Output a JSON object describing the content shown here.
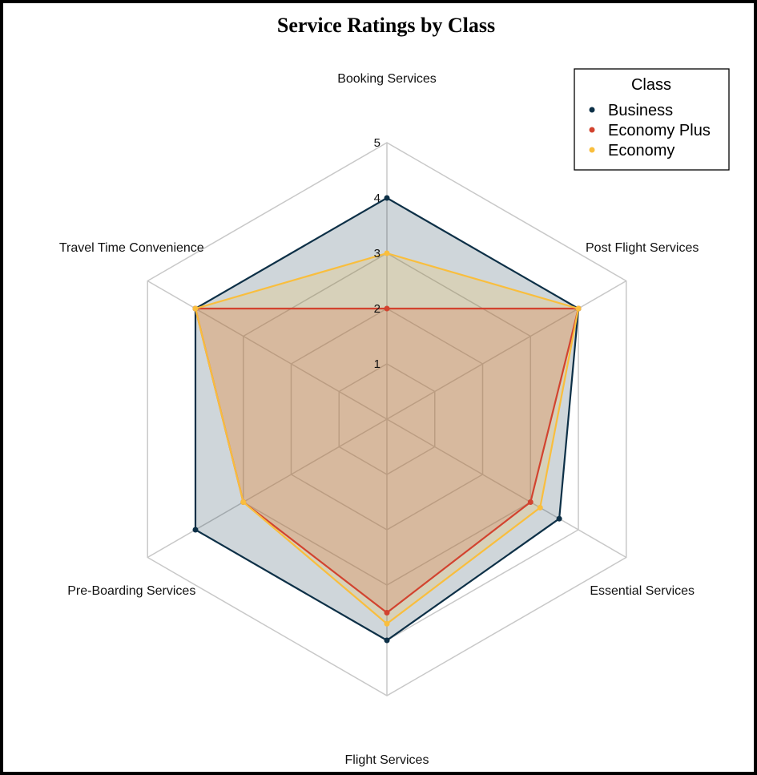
{
  "chart_data": {
    "type": "radar",
    "title": "Service Ratings by Class",
    "axes": [
      "Booking Services",
      "Post Flight Services",
      "Essential Services",
      "Flight Services",
      "Pre-Boarding Services",
      "Travel Time Convenience"
    ],
    "r_ticks": [
      "1",
      "2",
      "3",
      "4",
      "5"
    ],
    "r_range": [
      0,
      5
    ],
    "legend": {
      "title": "Class",
      "position": "top-right"
    },
    "series": [
      {
        "name": "Business",
        "color": "#0d3047",
        "values": [
          4,
          4,
          3.6,
          4,
          4,
          4
        ]
      },
      {
        "name": "Economy Plus",
        "color": "#d2432f",
        "values": [
          2,
          4,
          3,
          3.5,
          3,
          4
        ]
      },
      {
        "name": "Economy",
        "color": "#f9be3d",
        "values": [
          3,
          4,
          3.2,
          3.7,
          3,
          4
        ]
      }
    ],
    "grid": true
  }
}
